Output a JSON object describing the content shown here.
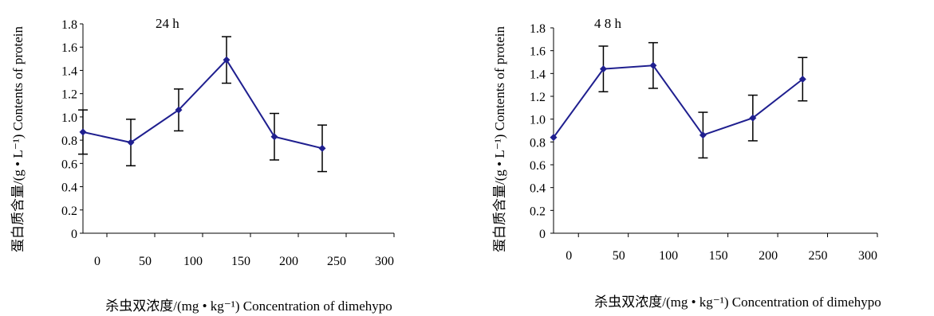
{
  "chart_data": [
    {
      "type": "line",
      "title": "24 h",
      "xlabel": "杀虫双浓度/(mg • kg⁻¹) Concentration of dimehypo",
      "ylabel": "蛋白质含量/(g • L⁻¹) Contents of protein",
      "x_ticks": [
        "0",
        "50",
        "100",
        "150",
        "200",
        "250",
        "300"
      ],
      "y_ticks": [
        "0",
        "0.2",
        "0.4",
        "0.6",
        "0.8",
        "1.0",
        "1.2",
        "1.4",
        "1.6",
        "1.8"
      ],
      "xlim": [
        -25,
        300
      ],
      "ylim": [
        0,
        1.8
      ],
      "line_color": "#1f1f8f",
      "series": [
        {
          "x": [
            -25,
            25,
            75,
            125,
            175,
            225
          ],
          "values": [
            0.87,
            0.78,
            1.06,
            1.49,
            0.83,
            0.73
          ],
          "error": [
            0.19,
            0.2,
            0.18,
            0.2,
            0.2,
            0.2
          ]
        }
      ]
    },
    {
      "type": "line",
      "title": "4 8 h",
      "xlabel": "杀虫双浓度/(mg • kg⁻¹) Concentration of dimehypo",
      "ylabel": "蛋白质含量/(g • L⁻¹) Contents of protein",
      "x_ticks": [
        "0",
        "50",
        "100",
        "150",
        "200",
        "250",
        "300"
      ],
      "y_ticks": [
        "0",
        "0.2",
        "0.4",
        "0.6",
        "0.8",
        "1.0",
        "1.2",
        "1.4",
        "1.6",
        "1.8"
      ],
      "xlim": [
        -25,
        300
      ],
      "ylim": [
        0,
        1.8
      ],
      "line_color": "#1f1f8f",
      "series": [
        {
          "x": [
            -25,
            25,
            75,
            125,
            175,
            225
          ],
          "values": [
            0.84,
            1.44,
            1.47,
            0.86,
            1.01,
            1.35
          ],
          "error": [
            0.0,
            0.2,
            0.2,
            0.2,
            0.2,
            0.19
          ]
        }
      ]
    }
  ]
}
